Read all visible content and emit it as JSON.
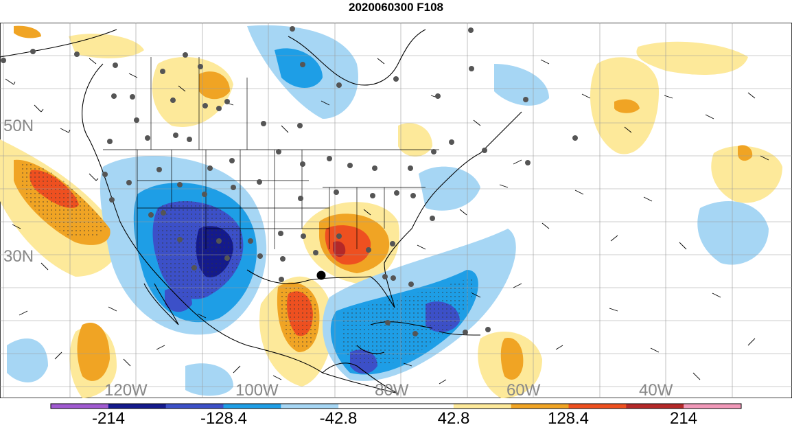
{
  "title": "2020060300 F108",
  "map": {
    "lat_labels": [
      "50N",
      "30N"
    ],
    "lon_labels": [
      "120W",
      "100W",
      "80W",
      "60W",
      "40W"
    ],
    "land_color": "#ffffff",
    "marker_color": "#555555",
    "center_marker_color": "#000000"
  },
  "colorbar": {
    "labels": [
      "-214",
      "-128.4",
      "-42.8",
      "42.8",
      "128.4",
      "214"
    ],
    "colors": [
      "#a05ad0",
      "#141a8c",
      "#3c50c8",
      "#1e9ee6",
      "#a6d6f4",
      "#ffffff",
      "#ffffff",
      "#fde99a",
      "#f0a424",
      "#ee5020",
      "#b42828",
      "#f098b8"
    ]
  }
}
